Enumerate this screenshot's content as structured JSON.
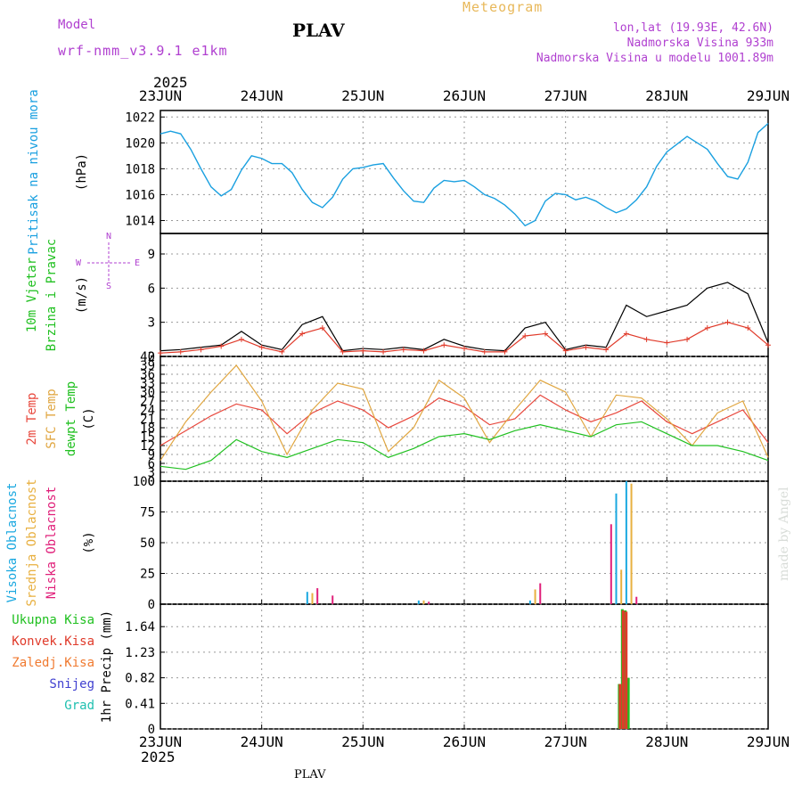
{
  "header": {
    "model_label": "Model",
    "model_name": "wrf-nmm_v3.9.1 e1km",
    "station": "PLAV",
    "title": "Meteogram",
    "coords": "lon,lat (19.93E, 42.6N)",
    "elevation": "Nadmorska Visina 933m",
    "model_elevation": "Nadmorska Visina u modelu 1001.89m"
  },
  "footer": {
    "station": "PLAV",
    "credit": "made by Angel"
  },
  "colors": {
    "pressure": "#1aa0e0",
    "wind_black": "#000000",
    "wind_red": "#e03a2a",
    "temp_2m": "#e8473c",
    "temp_sfc": "#e0a640",
    "dewpt": "#20c020",
    "cloud_high": "#1aa8e0",
    "cloud_mid": "#e8b040",
    "cloud_low": "#e0207a",
    "cloud_total": "#4040d0",
    "precip_total": "#20c020",
    "precip_conv": "#e03a2a"
  },
  "chart_data": [
    {
      "type": "line",
      "panel": "pressure",
      "ylabel": "Pritisak na nivou mora",
      "unit": "(hPa)",
      "ylim": [
        1013,
        1022.5
      ],
      "yticks": [
        1014,
        1016,
        1018,
        1020,
        1022
      ],
      "x_top_year": "2025",
      "x_bottom_year": "2025",
      "x_ticks": [
        "23JUN",
        "24JUN",
        "25JUN",
        "26JUN",
        "27JUN",
        "28JUN",
        "29JUN"
      ],
      "x_range_days": [
        0,
        6
      ],
      "series": [
        {
          "x": [
            0,
            0.1,
            0.2,
            0.3,
            0.4,
            0.5,
            0.6,
            0.7,
            0.8,
            0.9,
            1.0,
            1.1,
            1.2,
            1.3,
            1.4,
            1.5,
            1.6,
            1.7,
            1.8,
            1.9,
            2.0,
            2.1,
            2.2,
            2.3,
            2.4,
            2.5,
            2.6,
            2.7,
            2.8,
            2.9,
            3.0,
            3.1,
            3.2,
            3.3,
            3.4,
            3.5,
            3.6,
            3.7,
            3.8,
            3.9,
            4.0,
            4.1,
            4.2,
            4.3,
            4.4,
            4.5,
            4.6,
            4.7,
            4.8,
            4.9,
            5.0,
            5.1,
            5.2,
            5.3,
            5.4,
            5.5,
            5.6,
            5.7,
            5.8,
            5.9,
            6.0
          ],
          "y": [
            1020.7,
            1020.9,
            1020.7,
            1019.5,
            1018.0,
            1016.6,
            1015.9,
            1016.4,
            1017.9,
            1019.0,
            1018.8,
            1018.4,
            1018.4,
            1017.7,
            1016.4,
            1015.4,
            1015.0,
            1015.8,
            1017.2,
            1018.0,
            1018.1,
            1018.3,
            1018.4,
            1017.3,
            1016.3,
            1015.5,
            1015.4,
            1016.5,
            1017.1,
            1017.0,
            1017.1,
            1016.6,
            1016.0,
            1015.7,
            1015.2,
            1014.5,
            1013.6,
            1014.0,
            1015.5,
            1016.1,
            1016.0,
            1015.6,
            1015.8,
            1015.5,
            1015.0,
            1014.6,
            1014.9,
            1015.6,
            1016.6,
            1018.2,
            1019.3,
            1019.9,
            1020.5,
            1020.0,
            1019.5,
            1018.4,
            1017.4,
            1017.2,
            1018.5,
            1020.8,
            1021.5
          ]
        }
      ]
    },
    {
      "type": "line",
      "panel": "wind",
      "ylabel": "10m Vjetar",
      "ylabel2": "Brzina i Pravac",
      "unit": "(m/s)",
      "compass": {
        "n": "N",
        "s": "S",
        "w": "W",
        "e": "E"
      },
      "ylim": [
        0,
        10.8
      ],
      "yticks": [
        0,
        3,
        6,
        9
      ],
      "series": [
        {
          "name": "speed",
          "x": [
            0,
            0.2,
            0.4,
            0.6,
            0.8,
            1.0,
            1.2,
            1.4,
            1.6,
            1.8,
            2.0,
            2.2,
            2.4,
            2.6,
            2.8,
            3.0,
            3.2,
            3.4,
            3.6,
            3.8,
            4.0,
            4.2,
            4.4,
            4.6,
            4.8,
            5.0,
            5.2,
            5.4,
            5.6,
            5.8,
            6.0
          ],
          "y": [
            0.5,
            0.6,
            0.8,
            1.0,
            2.2,
            1.0,
            0.6,
            2.8,
            3.5,
            0.5,
            0.7,
            0.6,
            0.8,
            0.6,
            1.5,
            0.9,
            0.6,
            0.5,
            2.5,
            3.0,
            0.6,
            1.0,
            0.8,
            4.5,
            3.5,
            4.0,
            4.5,
            6.0,
            6.5,
            5.5,
            1.2
          ]
        },
        {
          "name": "gust",
          "x": [
            0,
            0.2,
            0.4,
            0.6,
            0.8,
            1.0,
            1.2,
            1.4,
            1.6,
            1.8,
            2.0,
            2.2,
            2.4,
            2.6,
            2.8,
            3.0,
            3.2,
            3.4,
            3.6,
            3.8,
            4.0,
            4.2,
            4.4,
            4.6,
            4.8,
            5.0,
            5.2,
            5.4,
            5.6,
            5.8,
            6.0
          ],
          "y": [
            0.3,
            0.4,
            0.6,
            0.9,
            1.5,
            0.8,
            0.4,
            2.0,
            2.5,
            0.4,
            0.5,
            0.4,
            0.6,
            0.5,
            1.0,
            0.7,
            0.4,
            0.4,
            1.8,
            2.0,
            0.5,
            0.8,
            0.6,
            2.0,
            1.5,
            1.2,
            1.5,
            2.5,
            3.0,
            2.5,
            1.0
          ]
        }
      ]
    },
    {
      "type": "line",
      "panel": "temperature",
      "ylabel": "2m Temp",
      "ylabel2": "SFC Temp",
      "ylabel3": "dewpt Temp",
      "unit": "(C)",
      "ylim": [
        0,
        42
      ],
      "yticks": [
        0,
        3,
        6,
        9,
        12,
        15,
        18,
        21,
        24,
        27,
        30,
        33,
        36,
        39,
        42
      ],
      "series": [
        {
          "name": "2m Temp",
          "x": [
            0,
            0.25,
            0.5,
            0.75,
            1.0,
            1.25,
            1.5,
            1.75,
            2.0,
            2.25,
            2.5,
            2.75,
            3.0,
            3.25,
            3.5,
            3.75,
            4.0,
            4.25,
            4.5,
            4.75,
            5.0,
            5.25,
            5.5,
            5.75,
            6.0
          ],
          "y": [
            12,
            17,
            22,
            26,
            24,
            16,
            23,
            27,
            24,
            18,
            22,
            28,
            25,
            19,
            21,
            29,
            24,
            20,
            23,
            27,
            20,
            16,
            20,
            24,
            13
          ]
        },
        {
          "name": "SFC Temp",
          "x": [
            0,
            0.25,
            0.5,
            0.75,
            1.0,
            1.25,
            1.5,
            1.75,
            2.0,
            2.25,
            2.5,
            2.75,
            3.0,
            3.25,
            3.5,
            3.75,
            4.0,
            4.25,
            4.5,
            4.75,
            5.0,
            5.25,
            5.5,
            5.75,
            6.0
          ],
          "y": [
            7,
            20,
            30,
            39,
            27,
            9,
            24,
            33,
            31,
            10,
            18,
            34,
            28,
            13,
            24,
            34,
            30,
            15,
            29,
            28,
            21,
            12,
            23,
            27,
            8
          ]
        },
        {
          "name": "dewpt Temp",
          "x": [
            0,
            0.25,
            0.5,
            0.75,
            1.0,
            1.25,
            1.5,
            1.75,
            2.0,
            2.25,
            2.5,
            2.75,
            3.0,
            3.25,
            3.5,
            3.75,
            4.0,
            4.25,
            4.5,
            4.75,
            5.0,
            5.25,
            5.5,
            5.75,
            6.0
          ],
          "y": [
            5,
            4,
            7,
            14,
            10,
            8,
            11,
            14,
            13,
            8,
            11,
            15,
            16,
            14,
            17,
            19,
            17,
            15,
            19,
            20,
            16,
            12,
            12,
            10,
            7
          ]
        }
      ]
    },
    {
      "type": "bar",
      "panel": "cloud",
      "ylabel": "Visoka Oblacnost",
      "ylabel2": "Srednja Oblacnost",
      "ylabel3": "Niska Oblacnost",
      "unit": "(%)",
      "ylim": [
        0,
        100
      ],
      "yticks": [
        0,
        25,
        50,
        75,
        100
      ],
      "series": [
        {
          "name": "Visoka",
          "x": [
            1.45,
            2.55,
            3.65,
            4.5,
            4.6
          ],
          "y": [
            10,
            3,
            3,
            90,
            100
          ]
        },
        {
          "name": "Srednja",
          "x": [
            1.5,
            2.6,
            3.7,
            4.55,
            4.65
          ],
          "y": [
            9,
            3,
            12,
            28,
            98
          ]
        },
        {
          "name": "Niska",
          "x": [
            1.55,
            1.7,
            2.65,
            3.75,
            4.45,
            4.7
          ],
          "y": [
            13,
            7,
            2,
            17,
            65,
            6
          ]
        }
      ]
    },
    {
      "type": "bar",
      "panel": "precip",
      "ylabel": "1hr Precip (mm)",
      "ylabel2": "Ukupna Kisa",
      "ylabel3": "Konvek.Kisa",
      "ylabel4": "Zaledj.Kisa",
      "ylabel5": "Snijeg",
      "ylabel6": "Grad",
      "ylim": [
        0,
        2.0
      ],
      "yticks": [
        0,
        0.41,
        0.82,
        1.23,
        1.64
      ],
      "series": [
        {
          "name": "Ukupna Kisa",
          "x": [
            4.53,
            4.56,
            4.59,
            4.62
          ],
          "y": [
            0.72,
            1.92,
            1.9,
            0.82
          ]
        },
        {
          "name": "Konvek.Kisa",
          "x": [
            4.53,
            4.56,
            4.59
          ],
          "y": [
            0.72,
            1.9,
            1.88
          ]
        }
      ]
    }
  ]
}
